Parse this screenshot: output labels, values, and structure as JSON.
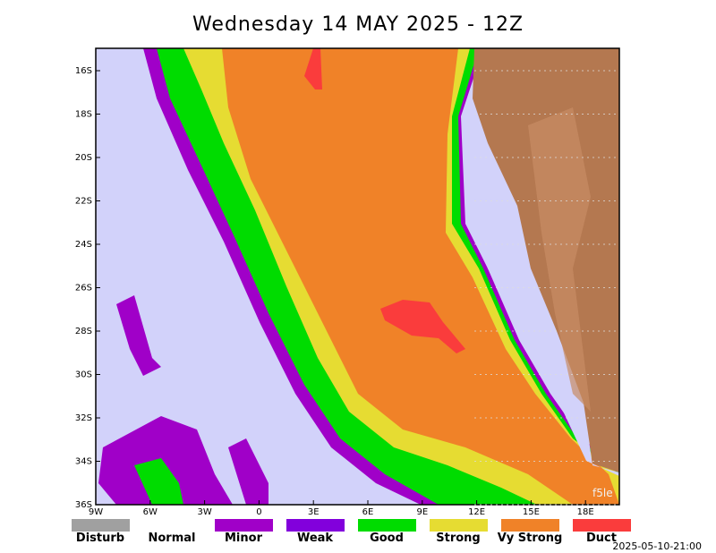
{
  "header": {
    "title": "Wednesday 14 MAY 2025 - 12Z"
  },
  "map": {
    "lat_labels": [
      "16S",
      "18S",
      "20S",
      "22S",
      "24S",
      "26S",
      "28S",
      "30S",
      "32S",
      "34S",
      "36S"
    ],
    "lon_labels": [
      "9W",
      "6W",
      "3W",
      "0",
      "3E",
      "6E",
      "9E",
      "12E",
      "15E",
      "18E"
    ],
    "watermark": "f5le"
  },
  "legend": {
    "items": [
      {
        "label": "Disturb",
        "color": "#a0a0a0"
      },
      {
        "label": "Normal",
        "color": "#ffffff"
      },
      {
        "label": "Minor",
        "color": "#a000c8"
      },
      {
        "label": "Weak",
        "color": "#8200dc"
      },
      {
        "label": "Good",
        "color": "#00dc00"
      },
      {
        "label": "Strong",
        "color": "#e6dc32"
      },
      {
        "label": "Vy Strong",
        "color": "#f08228"
      },
      {
        "label": "Duct",
        "color": "#fa3c3c"
      }
    ]
  },
  "timestamp": "2025-05-10-21:00"
}
